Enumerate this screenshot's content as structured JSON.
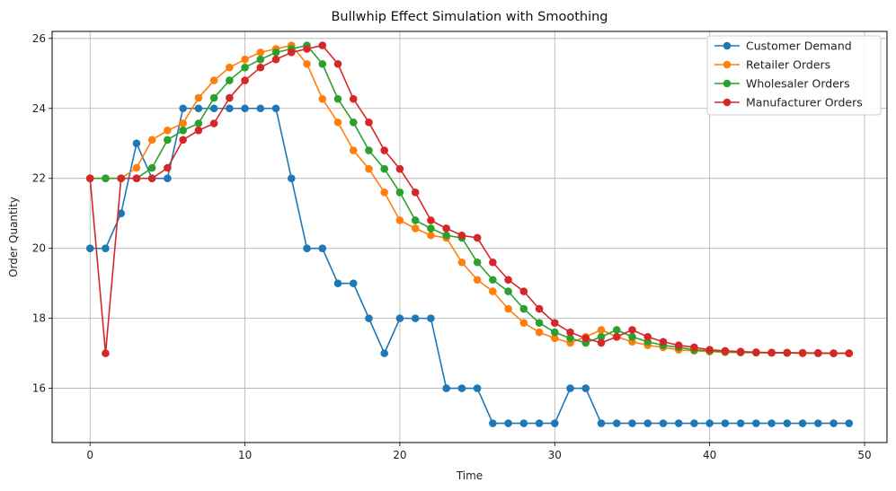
{
  "chart_data": {
    "type": "line",
    "title": "Bullwhip Effect Simulation with Smoothing",
    "xlabel": "Time",
    "ylabel": "Order Quantity",
    "xlim": [
      -2.45,
      51.45
    ],
    "ylim": [
      14.45,
      26.2
    ],
    "xticks": [
      0,
      10,
      20,
      30,
      40,
      50
    ],
    "yticks": [
      16,
      18,
      20,
      22,
      24,
      26
    ],
    "grid": true,
    "legend_position": "top-right",
    "x": [
      0,
      1,
      2,
      3,
      4,
      5,
      6,
      7,
      8,
      9,
      10,
      11,
      12,
      13,
      14,
      15,
      16,
      17,
      18,
      19,
      20,
      21,
      22,
      23,
      24,
      25,
      26,
      27,
      28,
      29,
      30,
      31,
      32,
      33,
      34,
      35,
      36,
      37,
      38,
      39,
      40,
      41,
      42,
      43,
      44,
      45,
      46,
      47,
      48,
      49
    ],
    "series": [
      {
        "name": "Customer Demand",
        "color": "#1f77b4",
        "values": [
          20,
          20,
          21,
          23,
          22,
          22,
          24,
          24,
          24,
          24,
          24,
          24,
          24,
          22,
          20,
          20,
          19,
          19,
          18,
          17,
          18,
          18,
          18,
          16,
          16,
          16,
          15,
          15,
          15,
          15,
          15,
          16,
          16,
          15,
          15,
          15,
          15,
          15,
          15,
          15,
          15,
          15,
          15,
          15,
          15,
          15,
          15,
          15,
          15,
          15
        ]
      },
      {
        "name": "Retailer Orders",
        "color": "#ff7f0e",
        "values": [
          22,
          22,
          22,
          22.3,
          23.1,
          23.37,
          23.57,
          24.3,
          24.8,
          25.17,
          25.4,
          25.6,
          25.7,
          25.8,
          25.27,
          24.27,
          23.6,
          22.8,
          22.27,
          21.6,
          20.8,
          20.57,
          20.37,
          20.3,
          19.6,
          19.1,
          18.77,
          18.27,
          17.87,
          17.6,
          17.43,
          17.3,
          17.47,
          17.67,
          17.47,
          17.33,
          17.23,
          17.17,
          17.1,
          17.07,
          17.05,
          17.03,
          17.02,
          17.02,
          17.01,
          17.01,
          17,
          17,
          17,
          17
        ]
      },
      {
        "name": "Wholesaler Orders",
        "color": "#2ca02c",
        "values": [
          22,
          22,
          22,
          22,
          22.3,
          23.1,
          23.37,
          23.57,
          24.3,
          24.8,
          25.17,
          25.4,
          25.6,
          25.7,
          25.8,
          25.27,
          24.27,
          23.6,
          22.8,
          22.27,
          21.6,
          20.8,
          20.57,
          20.37,
          20.3,
          19.6,
          19.1,
          18.77,
          18.27,
          17.87,
          17.6,
          17.43,
          17.3,
          17.47,
          17.67,
          17.47,
          17.33,
          17.23,
          17.17,
          17.1,
          17.07,
          17.05,
          17.03,
          17.02,
          17.02,
          17.01,
          17.01,
          17,
          17,
          17
        ]
      },
      {
        "name": "Manufacturer Orders",
        "color": "#d62728",
        "values": [
          22,
          17,
          22,
          22,
          22,
          22.3,
          23.1,
          23.37,
          23.57,
          24.3,
          24.8,
          25.17,
          25.4,
          25.6,
          25.7,
          25.8,
          25.27,
          24.27,
          23.6,
          22.8,
          22.27,
          21.6,
          20.8,
          20.57,
          20.37,
          20.3,
          19.6,
          19.1,
          18.77,
          18.27,
          17.87,
          17.6,
          17.43,
          17.3,
          17.47,
          17.67,
          17.47,
          17.33,
          17.23,
          17.17,
          17.1,
          17.07,
          17.05,
          17.03,
          17.02,
          17.02,
          17.01,
          17.01,
          17,
          17
        ]
      }
    ]
  }
}
